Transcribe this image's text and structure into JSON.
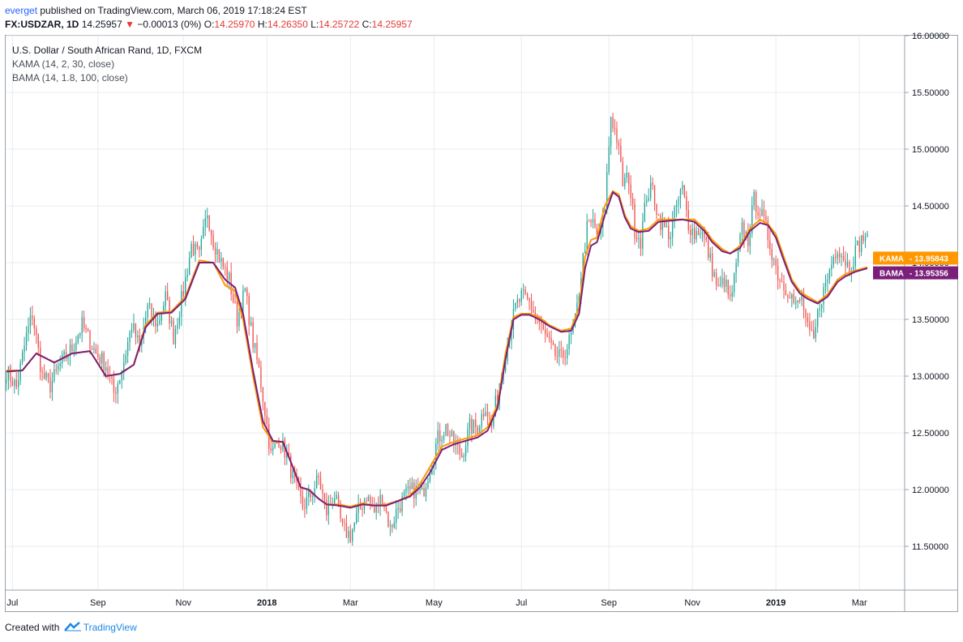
{
  "header": {
    "user": "everget",
    "published_text": "published on TradingView.com, March 06, 2019 17:18:24 EST",
    "symbol": "FX:USDZAR, 1D",
    "last": "14.25957",
    "change": "−0.00013 (0%)",
    "open_label": "O:",
    "open": "14.25970",
    "high_label": "H:",
    "high": "14.26350",
    "low_label": "L:",
    "low": "14.25722",
    "close_label": "C:",
    "close": "14.25957"
  },
  "legend": {
    "title": "U.S. Dollar / South African Rand, 1D, FXCM",
    "kama": "KAMA (14, 2, 30, close)",
    "bama": "BAMA (14, 1.8, 100, close)"
  },
  "footer": {
    "created_with": "Created with",
    "brand": "TradingView"
  },
  "colors": {
    "up": "#26a69a",
    "down": "#ef5350",
    "kama": "#ff9800",
    "bama": "#7b1f7a",
    "grid": "#e8ebef"
  },
  "chart_data": {
    "type": "candlestick",
    "title": "U.S. Dollar / South African Rand, 1D, FXCM",
    "ylim": [
      11.0,
      16.2
    ],
    "y_ticks": [
      "16.00000",
      "15.50000",
      "15.00000",
      "14.50000",
      "14.00000",
      "13.50000",
      "13.00000",
      "12.50000",
      "12.00000",
      "11.50000"
    ],
    "x_ticks": [
      {
        "label": "Jul",
        "idx": 3,
        "bold": false
      },
      {
        "label": "Sep",
        "idx": 46,
        "bold": false
      },
      {
        "label": "Nov",
        "idx": 89,
        "bold": false
      },
      {
        "label": "2018",
        "idx": 131,
        "bold": true
      },
      {
        "label": "Mar",
        "idx": 173,
        "bold": false
      },
      {
        "label": "May",
        "idx": 215,
        "bold": false
      },
      {
        "label": "Jul",
        "idx": 259,
        "bold": false
      },
      {
        "label": "Sep",
        "idx": 303,
        "bold": false
      },
      {
        "label": "Nov",
        "idx": 345,
        "bold": false
      },
      {
        "label": "2019",
        "idx": 387,
        "bold": true
      },
      {
        "label": "Mar",
        "idx": 429,
        "bold": false
      }
    ],
    "close_anchors": [
      [
        0,
        13.05
      ],
      [
        5,
        12.9
      ],
      [
        10,
        13.35
      ],
      [
        13,
        13.55
      ],
      [
        18,
        13.0
      ],
      [
        22,
        12.92
      ],
      [
        27,
        13.1
      ],
      [
        33,
        13.25
      ],
      [
        38,
        13.45
      ],
      [
        45,
        13.2
      ],
      [
        50,
        13.1
      ],
      [
        54,
        12.85
      ],
      [
        58,
        13.05
      ],
      [
        63,
        13.45
      ],
      [
        67,
        13.25
      ],
      [
        71,
        13.6
      ],
      [
        76,
        13.45
      ],
      [
        80,
        13.7
      ],
      [
        84,
        13.35
      ],
      [
        89,
        13.75
      ],
      [
        93,
        14.15
      ],
      [
        97,
        14.05
      ],
      [
        101,
        14.45
      ],
      [
        104,
        14.2
      ],
      [
        108,
        14.0
      ],
      [
        112,
        13.85
      ],
      [
        116,
        13.5
      ],
      [
        120,
        13.75
      ],
      [
        124,
        13.3
      ],
      [
        127,
        13.05
      ],
      [
        130,
        12.7
      ],
      [
        133,
        12.3
      ],
      [
        137,
        12.45
      ],
      [
        141,
        12.3
      ],
      [
        145,
        12.05
      ],
      [
        149,
        11.85
      ],
      [
        153,
        11.95
      ],
      [
        157,
        12.1
      ],
      [
        161,
        11.8
      ],
      [
        165,
        11.95
      ],
      [
        169,
        11.65
      ],
      [
        173,
        11.6
      ],
      [
        177,
        11.8
      ],
      [
        181,
        11.95
      ],
      [
        185,
        11.8
      ],
      [
        189,
        11.95
      ],
      [
        193,
        11.65
      ],
      [
        197,
        11.85
      ],
      [
        201,
        11.95
      ],
      [
        205,
        12.0
      ],
      [
        209,
        11.95
      ],
      [
        213,
        12.2
      ],
      [
        217,
        12.45
      ],
      [
        221,
        12.55
      ],
      [
        225,
        12.4
      ],
      [
        229,
        12.3
      ],
      [
        233,
        12.55
      ],
      [
        237,
        12.55
      ],
      [
        241,
        12.75
      ],
      [
        244,
        12.55
      ],
      [
        248,
        12.95
      ],
      [
        252,
        13.3
      ],
      [
        256,
        13.6
      ],
      [
        259,
        13.7
      ],
      [
        263,
        13.65
      ],
      [
        267,
        13.5
      ],
      [
        271,
        13.35
      ],
      [
        275,
        13.2
      ],
      [
        279,
        13.15
      ],
      [
        283,
        13.3
      ],
      [
        286,
        13.45
      ],
      [
        289,
        13.9
      ],
      [
        292,
        14.3
      ],
      [
        295,
        14.35
      ],
      [
        298,
        14.2
      ],
      [
        301,
        14.5
      ],
      [
        304,
        15.3
      ],
      [
        307,
        15.1
      ],
      [
        310,
        14.7
      ],
      [
        313,
        14.75
      ],
      [
        316,
        14.3
      ],
      [
        319,
        14.2
      ],
      [
        322,
        14.6
      ],
      [
        325,
        14.65
      ],
      [
        328,
        14.4
      ],
      [
        331,
        14.3
      ],
      [
        334,
        14.25
      ],
      [
        337,
        14.5
      ],
      [
        340,
        14.65
      ],
      [
        343,
        14.35
      ],
      [
        346,
        14.25
      ],
      [
        349,
        14.3
      ],
      [
        352,
        14.15
      ],
      [
        355,
        13.95
      ],
      [
        358,
        13.75
      ],
      [
        361,
        13.85
      ],
      [
        364,
        13.65
      ],
      [
        367,
        13.95
      ],
      [
        370,
        14.3
      ],
      [
        373,
        14.2
      ],
      [
        376,
        14.55
      ],
      [
        379,
        14.45
      ],
      [
        382,
        14.3
      ],
      [
        385,
        14.1
      ],
      [
        388,
        13.9
      ],
      [
        391,
        13.8
      ],
      [
        394,
        13.75
      ],
      [
        397,
        13.6
      ],
      [
        400,
        13.7
      ],
      [
        403,
        13.4
      ],
      [
        406,
        13.3
      ],
      [
        409,
        13.65
      ],
      [
        412,
        13.8
      ],
      [
        415,
        14.0
      ],
      [
        418,
        14.15
      ],
      [
        421,
        14.05
      ],
      [
        424,
        13.95
      ],
      [
        427,
        14.1
      ],
      [
        430,
        14.2
      ],
      [
        433,
        14.26
      ]
    ],
    "kama": {
      "name": "KAMA",
      "last": "13.95843"
    },
    "bama": {
      "name": "BAMA",
      "last": "13.95356"
    },
    "kama_anchors": [
      [
        0,
        13.05
      ],
      [
        8,
        13.05
      ],
      [
        15,
        13.2
      ],
      [
        24,
        13.12
      ],
      [
        33,
        13.2
      ],
      [
        42,
        13.22
      ],
      [
        50,
        13.0
      ],
      [
        57,
        13.02
      ],
      [
        64,
        13.1
      ],
      [
        70,
        13.45
      ],
      [
        76,
        13.56
      ],
      [
        83,
        13.57
      ],
      [
        90,
        13.7
      ],
      [
        97,
        14.02
      ],
      [
        104,
        14.0
      ],
      [
        110,
        13.8
      ],
      [
        115,
        13.75
      ],
      [
        119,
        13.5
      ],
      [
        124,
        13.0
      ],
      [
        129,
        12.55
      ],
      [
        134,
        12.42
      ],
      [
        139,
        12.42
      ],
      [
        144,
        12.2
      ],
      [
        148,
        12.02
      ],
      [
        152,
        12.0
      ],
      [
        157,
        11.92
      ],
      [
        161,
        11.87
      ],
      [
        167,
        11.87
      ],
      [
        173,
        11.85
      ],
      [
        179,
        11.88
      ],
      [
        185,
        11.86
      ],
      [
        191,
        11.87
      ],
      [
        197,
        11.9
      ],
      [
        203,
        11.95
      ],
      [
        208,
        12.05
      ],
      [
        213,
        12.2
      ],
      [
        219,
        12.38
      ],
      [
        225,
        12.42
      ],
      [
        231,
        12.45
      ],
      [
        237,
        12.48
      ],
      [
        242,
        12.55
      ],
      [
        247,
        12.75
      ],
      [
        251,
        13.2
      ],
      [
        255,
        13.52
      ],
      [
        259,
        13.55
      ],
      [
        263,
        13.55
      ],
      [
        268,
        13.52
      ],
      [
        273,
        13.45
      ],
      [
        279,
        13.4
      ],
      [
        284,
        13.42
      ],
      [
        288,
        13.6
      ],
      [
        291,
        14.05
      ],
      [
        294,
        14.2
      ],
      [
        297,
        14.22
      ],
      [
        301,
        14.5
      ],
      [
        305,
        14.63
      ],
      [
        308,
        14.6
      ],
      [
        311,
        14.42
      ],
      [
        314,
        14.32
      ],
      [
        318,
        14.28
      ],
      [
        323,
        14.3
      ],
      [
        328,
        14.38
      ],
      [
        334,
        14.38
      ],
      [
        340,
        14.38
      ],
      [
        346,
        14.38
      ],
      [
        351,
        14.3
      ],
      [
        355,
        14.2
      ],
      [
        360,
        14.12
      ],
      [
        364,
        14.08
      ],
      [
        369,
        14.15
      ],
      [
        374,
        14.3
      ],
      [
        379,
        14.38
      ],
      [
        383,
        14.34
      ],
      [
        387,
        14.25
      ],
      [
        391,
        14.05
      ],
      [
        395,
        13.85
      ],
      [
        399,
        13.75
      ],
      [
        403,
        13.7
      ],
      [
        408,
        13.65
      ],
      [
        413,
        13.72
      ],
      [
        418,
        13.85
      ],
      [
        422,
        13.9
      ],
      [
        427,
        13.93
      ],
      [
        433,
        13.96
      ]
    ],
    "bama_anchors": [
      [
        0,
        13.04
      ],
      [
        8,
        13.05
      ],
      [
        15,
        13.2
      ],
      [
        24,
        13.12
      ],
      [
        33,
        13.2
      ],
      [
        42,
        13.22
      ],
      [
        50,
        13.0
      ],
      [
        57,
        13.02
      ],
      [
        64,
        13.1
      ],
      [
        70,
        13.43
      ],
      [
        76,
        13.55
      ],
      [
        83,
        13.56
      ],
      [
        90,
        13.68
      ],
      [
        97,
        14.0
      ],
      [
        104,
        14.0
      ],
      [
        110,
        13.85
      ],
      [
        115,
        13.78
      ],
      [
        119,
        13.55
      ],
      [
        124,
        13.05
      ],
      [
        129,
        12.6
      ],
      [
        134,
        12.43
      ],
      [
        139,
        12.42
      ],
      [
        144,
        12.2
      ],
      [
        148,
        12.02
      ],
      [
        152,
        12.0
      ],
      [
        157,
        11.92
      ],
      [
        161,
        11.87
      ],
      [
        167,
        11.86
      ],
      [
        173,
        11.84
      ],
      [
        179,
        11.87
      ],
      [
        185,
        11.86
      ],
      [
        191,
        11.86
      ],
      [
        197,
        11.9
      ],
      [
        203,
        11.94
      ],
      [
        208,
        12.02
      ],
      [
        213,
        12.15
      ],
      [
        219,
        12.35
      ],
      [
        225,
        12.4
      ],
      [
        231,
        12.43
      ],
      [
        237,
        12.46
      ],
      [
        242,
        12.52
      ],
      [
        247,
        12.72
      ],
      [
        251,
        13.15
      ],
      [
        255,
        13.5
      ],
      [
        259,
        13.54
      ],
      [
        263,
        13.54
      ],
      [
        268,
        13.5
      ],
      [
        273,
        13.44
      ],
      [
        279,
        13.39
      ],
      [
        284,
        13.4
      ],
      [
        288,
        13.55
      ],
      [
        291,
        13.95
      ],
      [
        294,
        14.15
      ],
      [
        297,
        14.18
      ],
      [
        301,
        14.42
      ],
      [
        305,
        14.62
      ],
      [
        308,
        14.58
      ],
      [
        311,
        14.4
      ],
      [
        314,
        14.3
      ],
      [
        318,
        14.27
      ],
      [
        323,
        14.28
      ],
      [
        328,
        14.36
      ],
      [
        334,
        14.37
      ],
      [
        340,
        14.38
      ],
      [
        346,
        14.36
      ],
      [
        351,
        14.28
      ],
      [
        355,
        14.18
      ],
      [
        360,
        14.1
      ],
      [
        364,
        14.08
      ],
      [
        369,
        14.13
      ],
      [
        374,
        14.28
      ],
      [
        379,
        14.35
      ],
      [
        383,
        14.33
      ],
      [
        387,
        14.22
      ],
      [
        391,
        14.02
      ],
      [
        395,
        13.83
      ],
      [
        399,
        13.73
      ],
      [
        403,
        13.68
      ],
      [
        408,
        13.64
      ],
      [
        413,
        13.7
      ],
      [
        418,
        13.83
      ],
      [
        422,
        13.88
      ],
      [
        427,
        13.92
      ],
      [
        433,
        13.95
      ]
    ]
  }
}
